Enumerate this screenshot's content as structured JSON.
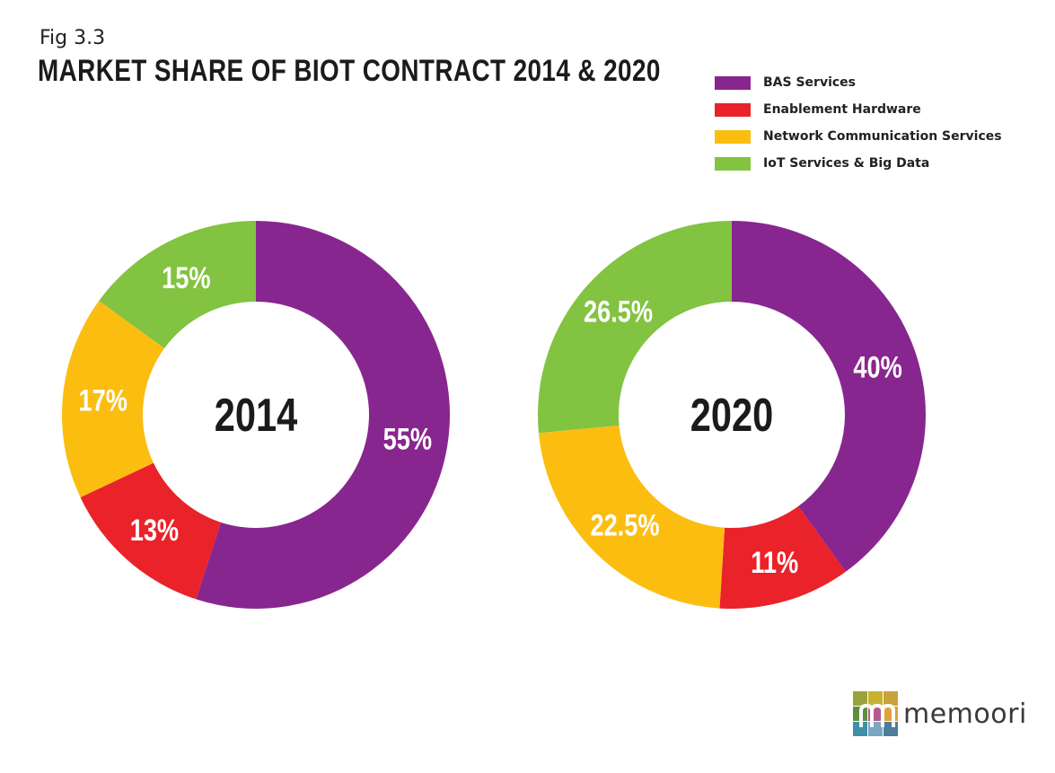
{
  "header": {
    "fig_label": "Fig 3.3",
    "title": "MARKET SHARE OF BIOT CONTRACT 2014 & 2020"
  },
  "logo": {
    "text": "memoori"
  },
  "colors": {
    "BAS Services": "#88268f",
    "Enablement Hardware": "#ea2229",
    "Network Communication Services": "#fcbd11",
    "IoT Services & Big Data": "#82c341"
  },
  "chart_data": [
    {
      "type": "pie",
      "donut": true,
      "center_label": "2014",
      "categories": [
        "BAS Services",
        "Enablement Hardware",
        "Network Communication Services",
        "IoT Services & Big Data"
      ],
      "values": [
        55,
        13,
        17,
        15
      ],
      "labels": [
        "55%",
        "13%",
        "17%",
        "15%"
      ],
      "legend": [
        "BAS Services",
        "Enablement Hardware",
        "Network Communication Services",
        "IoT Services & Big Data"
      ],
      "legend_position": "top-right"
    },
    {
      "type": "pie",
      "donut": true,
      "center_label": "2020",
      "categories": [
        "BAS Services",
        "Enablement Hardware",
        "Network Communication Services",
        "IoT Services & Big Data"
      ],
      "values": [
        40,
        11,
        22.5,
        26.5
      ],
      "labels": [
        "40%",
        "11%",
        "22.5%",
        "26.5%"
      ],
      "legend": [
        "BAS Services",
        "Enablement Hardware",
        "Network Communication Services",
        "IoT Services & Big Data"
      ],
      "legend_position": "top-right"
    }
  ]
}
